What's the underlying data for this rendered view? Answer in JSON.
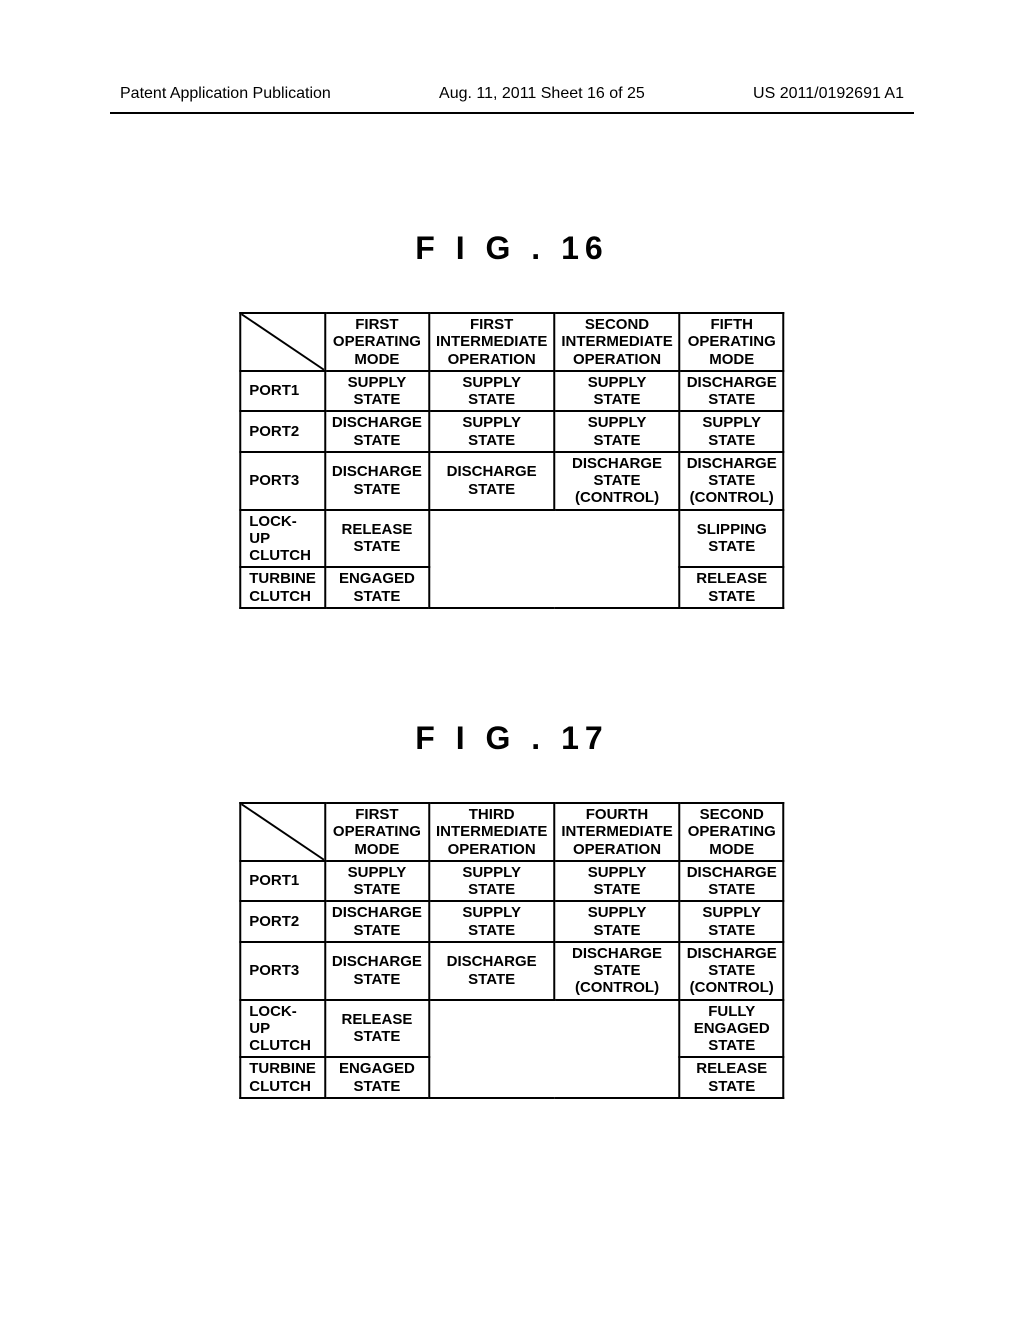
{
  "page_header": {
    "left": "Patent Application Publication",
    "center": "Aug. 11, 2011  Sheet 16 of 25",
    "right": "US 2011/0192691 A1"
  },
  "fig16": {
    "title": "F I G . 16",
    "columns": [
      "FIRST\nOPERATING\nMODE",
      "FIRST\nINTERMEDIATE\nOPERATION",
      "SECOND\nINTERMEDIATE\nOPERATION",
      "FIFTH\nOPERATING\nMODE"
    ],
    "rows": [
      {
        "label": "PORT1",
        "cells": [
          "SUPPLY\nSTATE",
          "SUPPLY\nSTATE",
          "SUPPLY\nSTATE",
          "DISCHARGE\nSTATE"
        ]
      },
      {
        "label": "PORT2",
        "cells": [
          "DISCHARGE\nSTATE",
          "SUPPLY\nSTATE",
          "SUPPLY\nSTATE",
          "SUPPLY\nSTATE"
        ]
      },
      {
        "label": "PORT3",
        "cells": [
          "DISCHARGE\nSTATE",
          "DISCHARGE\nSTATE",
          "DISCHARGE\nSTATE\n(CONTROL)",
          "DISCHARGE\nSTATE\n(CONTROL)"
        ]
      },
      {
        "label": "LOCK-UP\nCLUTCH",
        "cells": [
          "RELEASE\nSTATE",
          "",
          "",
          "SLIPPING\nSTATE"
        ]
      },
      {
        "label": "TURBINE\nCLUTCH",
        "cells": [
          "ENGAGED\nSTATE",
          "",
          "",
          "RELEASE\nSTATE"
        ]
      }
    ]
  },
  "fig17": {
    "title": "F I G . 17",
    "columns": [
      "FIRST\nOPERATING\nMODE",
      "THIRD\nINTERMEDIATE\nOPERATION",
      "FOURTH\nINTERMEDIATE\nOPERATION",
      "SECOND\nOPERATING\nMODE"
    ],
    "rows": [
      {
        "label": "PORT1",
        "cells": [
          "SUPPLY\nSTATE",
          "SUPPLY\nSTATE",
          "SUPPLY\nSTATE",
          "DISCHARGE\nSTATE"
        ]
      },
      {
        "label": "PORT2",
        "cells": [
          "DISCHARGE\nSTATE",
          "SUPPLY\nSTATE",
          "SUPPLY\nSTATE",
          "SUPPLY\nSTATE"
        ]
      },
      {
        "label": "PORT3",
        "cells": [
          "DISCHARGE\nSTATE",
          "DISCHARGE\nSTATE",
          "DISCHARGE\nSTATE\n(CONTROL)",
          "DISCHARGE\nSTATE\n(CONTROL)"
        ]
      },
      {
        "label": "LOCK-UP\nCLUTCH",
        "cells": [
          "RELEASE\nSTATE",
          "",
          "",
          "FULLY\nENGAGED\nSTATE"
        ]
      },
      {
        "label": "TURBINE\nCLUTCH",
        "cells": [
          "ENGAGED\nSTATE",
          "",
          "",
          "RELEASE\nSTATE"
        ]
      }
    ]
  },
  "style": {
    "background_color": "#ffffff",
    "border_color": "#000000",
    "font_family": "Arial",
    "title_fontsize": 32,
    "cell_fontsize": 15,
    "header_fontsize": 16
  }
}
